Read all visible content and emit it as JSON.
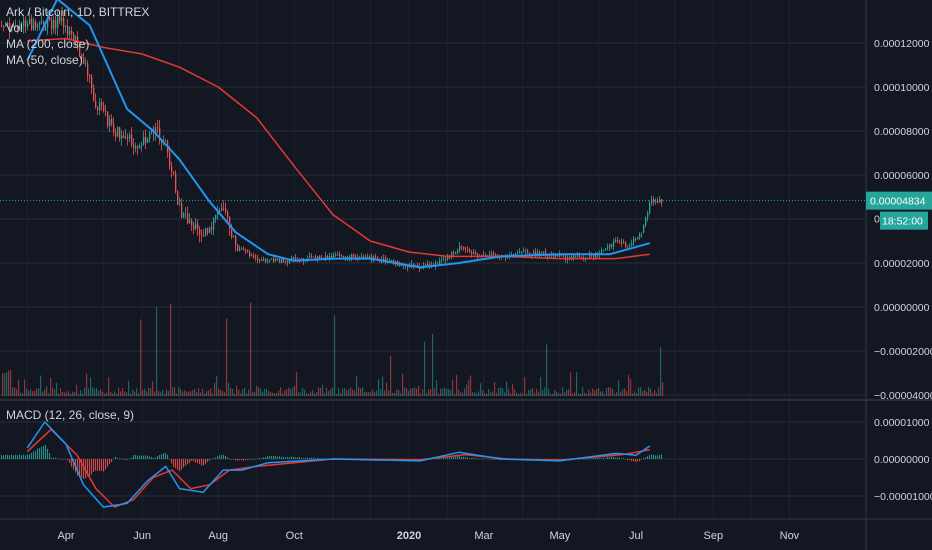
{
  "header": {
    "symbol_line": "Ark / Bitcoin, 1D, BITTREX",
    "indicators": [
      "Vol",
      "MA (200, close)",
      "MA (50, close)"
    ]
  },
  "macd_header": "MACD (12, 26, close, 9)",
  "price_badge": "0.00004834",
  "countdown_badge": "18:52:00",
  "partial_label": "0.",
  "colors": {
    "background": "#131722",
    "up": "#26a69a",
    "down": "#ef5350",
    "ma50": "#2196f3",
    "ma200": "#e53935",
    "macd_line": "#2196f3",
    "signal_line": "#e53935",
    "grid": "#2a2e39",
    "badge": "#26a69a"
  },
  "chart_data": [
    {
      "type": "line",
      "title": "Ark / Bitcoin, 1D, BITTREX",
      "x_ticks": [
        "Apr",
        "Jun",
        "Aug",
        "Oct",
        "2020",
        "Mar",
        "May",
        "Jul",
        "Sep",
        "Nov"
      ],
      "y_ticks": [
        "0.00012000",
        "0.00010000",
        "0.00008000",
        "0.00006000",
        "0.00002000",
        "0.00000000",
        "−0.00002000",
        "−0.00004000"
      ],
      "ylim": [
        -4e-05,
        0.00014
      ],
      "last_price": 4.834e-05,
      "price_series": [
        {
          "date": "2019-03-10",
          "value": 0.000128
        },
        {
          "date": "2019-03-25",
          "value": 0.00013
        },
        {
          "date": "2019-04-05",
          "value": 0.000125
        },
        {
          "date": "2019-04-15",
          "value": 0.000112
        },
        {
          "date": "2019-04-25",
          "value": 9.2e-05
        },
        {
          "date": "2019-05-10",
          "value": 8e-05
        },
        {
          "date": "2019-05-25",
          "value": 7.4e-05
        },
        {
          "date": "2019-06-10",
          "value": 8e-05
        },
        {
          "date": "2019-06-20",
          "value": 7.4e-05
        },
        {
          "date": "2019-07-01",
          "value": 4.4e-05
        },
        {
          "date": "2019-07-15",
          "value": 3.5e-05
        },
        {
          "date": "2019-07-25",
          "value": 3.6e-05
        },
        {
          "date": "2019-08-05",
          "value": 4.6e-05
        },
        {
          "date": "2019-08-15",
          "value": 2.7e-05
        },
        {
          "date": "2019-09-01",
          "value": 2.2e-05
        },
        {
          "date": "2019-09-20",
          "value": 2.1e-05
        },
        {
          "date": "2019-10-10",
          "value": 2.2e-05
        },
        {
          "date": "2019-11-01",
          "value": 2.3e-05
        },
        {
          "date": "2019-11-25",
          "value": 2.3e-05
        },
        {
          "date": "2019-12-20",
          "value": 2e-05
        },
        {
          "date": "2020-01-10",
          "value": 1.8e-05
        },
        {
          "date": "2020-01-25",
          "value": 2e-05
        },
        {
          "date": "2020-02-10",
          "value": 2.7e-05
        },
        {
          "date": "2020-02-25",
          "value": 2.4e-05
        },
        {
          "date": "2020-03-15",
          "value": 2.3e-05
        },
        {
          "date": "2020-04-01",
          "value": 2.5e-05
        },
        {
          "date": "2020-04-20",
          "value": 2.4e-05
        },
        {
          "date": "2020-05-10",
          "value": 2.2e-05
        },
        {
          "date": "2020-06-01",
          "value": 2.4e-05
        },
        {
          "date": "2020-06-15",
          "value": 3e-05
        },
        {
          "date": "2020-06-25",
          "value": 2.8e-05
        },
        {
          "date": "2020-07-05",
          "value": 3.4e-05
        },
        {
          "date": "2020-07-12",
          "value": 4.8e-05
        }
      ],
      "ma50_series": [
        {
          "date": "2019-03-01",
          "value": 0.000112
        },
        {
          "date": "2019-03-25",
          "value": 0.00014
        },
        {
          "date": "2019-04-20",
          "value": 0.000128
        },
        {
          "date": "2019-05-20",
          "value": 9e-05
        },
        {
          "date": "2019-06-10",
          "value": 8e-05
        },
        {
          "date": "2019-07-01",
          "value": 6.7e-05
        },
        {
          "date": "2019-07-25",
          "value": 4.8e-05
        },
        {
          "date": "2019-08-15",
          "value": 3.4e-05
        },
        {
          "date": "2019-09-10",
          "value": 2.4e-05
        },
        {
          "date": "2019-10-01",
          "value": 2.1e-05
        },
        {
          "date": "2019-11-01",
          "value": 2.2e-05
        },
        {
          "date": "2019-12-01",
          "value": 2.2e-05
        },
        {
          "date": "2020-01-10",
          "value": 1.8e-05
        },
        {
          "date": "2020-02-10",
          "value": 2e-05
        },
        {
          "date": "2020-03-15",
          "value": 2.3e-05
        },
        {
          "date": "2020-05-01",
          "value": 2.4e-05
        },
        {
          "date": "2020-06-10",
          "value": 2.4e-05
        },
        {
          "date": "2020-07-12",
          "value": 2.9e-05
        }
      ],
      "ma200_series": [
        {
          "date": "2019-03-01",
          "value": 0.000121
        },
        {
          "date": "2019-04-01",
          "value": 0.000122
        },
        {
          "date": "2019-05-01",
          "value": 0.000118
        },
        {
          "date": "2019-06-01",
          "value": 0.000115
        },
        {
          "date": "2019-07-01",
          "value": 0.000109
        },
        {
          "date": "2019-08-01",
          "value": 0.0001
        },
        {
          "date": "2019-09-01",
          "value": 8.6e-05
        },
        {
          "date": "2019-10-01",
          "value": 6.4e-05
        },
        {
          "date": "2019-11-01",
          "value": 4.2e-05
        },
        {
          "date": "2019-12-01",
          "value": 3e-05
        },
        {
          "date": "2020-01-01",
          "value": 2.5e-05
        },
        {
          "date": "2020-02-01",
          "value": 2.3e-05
        },
        {
          "date": "2020-03-15",
          "value": 2.3e-05
        },
        {
          "date": "2020-05-01",
          "value": 2.2e-05
        },
        {
          "date": "2020-06-15",
          "value": 2.2e-05
        },
        {
          "date": "2020-07-12",
          "value": 2.4e-05
        }
      ]
    },
    {
      "type": "line",
      "title": "MACD (12, 26, close, 9)",
      "x_ticks": [
        "Apr",
        "Jun",
        "Aug",
        "Oct",
        "2020",
        "Mar",
        "May",
        "Jul",
        "Sep",
        "Nov"
      ],
      "y_ticks": [
        "0.00001000",
        "0.00000000",
        "−0.00001000"
      ],
      "ylim": [
        -1.7e-05,
        1.15e-05
      ],
      "macd_series": [
        {
          "date": "2019-03-01",
          "value": 3e-06
        },
        {
          "date": "2019-03-15",
          "value": 1e-05
        },
        {
          "date": "2019-04-01",
          "value": 4e-06
        },
        {
          "date": "2019-04-15",
          "value": -7e-06
        },
        {
          "date": "2019-05-01",
          "value": -1.3e-05
        },
        {
          "date": "2019-05-20",
          "value": -1.2e-05
        },
        {
          "date": "2019-06-05",
          "value": -6e-06
        },
        {
          "date": "2019-06-20",
          "value": -2e-06
        },
        {
          "date": "2019-07-01",
          "value": -8e-06
        },
        {
          "date": "2019-07-20",
          "value": -9e-06
        },
        {
          "date": "2019-08-05",
          "value": -3e-06
        },
        {
          "date": "2019-08-20",
          "value": -3e-06
        },
        {
          "date": "2019-09-10",
          "value": -1e-06
        },
        {
          "date": "2019-11-01",
          "value": 0.0
        },
        {
          "date": "2020-01-10",
          "value": -5e-07
        },
        {
          "date": "2020-02-10",
          "value": 1.8e-06
        },
        {
          "date": "2020-03-15",
          "value": 0.0
        },
        {
          "date": "2020-05-01",
          "value": -5e-07
        },
        {
          "date": "2020-06-15",
          "value": 1.5e-06
        },
        {
          "date": "2020-07-01",
          "value": 1e-06
        },
        {
          "date": "2020-07-12",
          "value": 3.5e-06
        }
      ],
      "signal_series": [
        {
          "date": "2019-03-01",
          "value": 2e-06
        },
        {
          "date": "2019-03-20",
          "value": 8e-06
        },
        {
          "date": "2019-04-10",
          "value": 1e-06
        },
        {
          "date": "2019-04-25",
          "value": -8e-06
        },
        {
          "date": "2019-05-10",
          "value": -1.3e-05
        },
        {
          "date": "2019-05-25",
          "value": -1.1e-05
        },
        {
          "date": "2019-06-10",
          "value": -5e-06
        },
        {
          "date": "2019-06-25",
          "value": -3e-06
        },
        {
          "date": "2019-07-10",
          "value": -8e-06
        },
        {
          "date": "2019-07-25",
          "value": -7e-06
        },
        {
          "date": "2019-08-10",
          "value": -3e-06
        },
        {
          "date": "2019-09-01",
          "value": -2e-06
        },
        {
          "date": "2019-11-01",
          "value": 0.0
        },
        {
          "date": "2020-01-10",
          "value": -2e-07
        },
        {
          "date": "2020-02-15",
          "value": 1.2e-06
        },
        {
          "date": "2020-03-20",
          "value": 0.0
        },
        {
          "date": "2020-05-01",
          "value": -3e-07
        },
        {
          "date": "2020-06-20",
          "value": 1.2e-06
        },
        {
          "date": "2020-07-12",
          "value": 2.5e-06
        }
      ]
    }
  ]
}
